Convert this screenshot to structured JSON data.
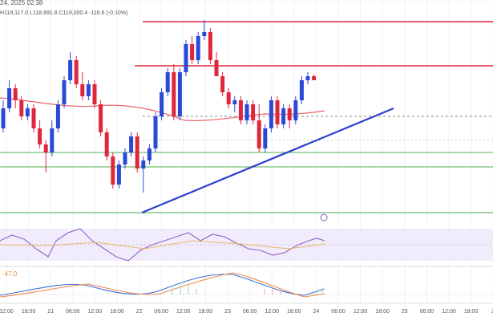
{
  "header": {
    "time": "24, 2025 02:38",
    "ohlc": "H119,117.0 L118,891.8 C119,000.4 -116.6 (-0.10%)"
  },
  "chart_data": {
    "type": "candlestick",
    "up_color": "#2a49d6",
    "down_color": "#e0263a",
    "ylim": [
      115670,
      120710
    ],
    "open": [
      117830,
      118280,
      118730,
      118460,
      118100,
      118280,
      117830,
      117470,
      117290,
      117830,
      118370,
      118910,
      119360,
      118820,
      118550,
      118820,
      118370,
      117740,
      117200,
      116570,
      117020,
      117290,
      117650,
      116930,
      117110,
      117380,
      118100,
      118640,
      119090,
      118100,
      119090,
      119720,
      119360,
      119900,
      119990,
      119360,
      119000,
      118640,
      118370,
      118460,
      118010,
      118370,
      118010,
      117380,
      117830,
      118460,
      117920,
      118280,
      118010,
      118460,
      118910,
      119000
    ],
    "high": [
      118460,
      118910,
      118820,
      118550,
      118370,
      118370,
      118010,
      117560,
      118010,
      118460,
      119000,
      119540,
      119450,
      119090,
      118910,
      118910,
      118460,
      117830,
      117290,
      117110,
      117380,
      117740,
      117740,
      117200,
      117470,
      118190,
      118730,
      119180,
      119270,
      119180,
      119810,
      119900,
      119990,
      120260,
      120080,
      119540,
      119090,
      118730,
      118550,
      118550,
      118460,
      118460,
      118370,
      117920,
      118550,
      118550,
      118370,
      118370,
      118550,
      119000,
      119090,
      119040
    ],
    "low": [
      117740,
      118190,
      118280,
      118010,
      118010,
      117740,
      117380,
      116840,
      117200,
      117740,
      118280,
      118820,
      118730,
      118460,
      118460,
      118280,
      117650,
      117110,
      116480,
      116480,
      116930,
      117200,
      116840,
      116390,
      117020,
      117290,
      118010,
      118550,
      118010,
      118010,
      119000,
      119270,
      119270,
      119810,
      119270,
      119000,
      118550,
      118280,
      118190,
      117920,
      117920,
      117920,
      117290,
      117290,
      117740,
      117830,
      117830,
      117830,
      117920,
      118370,
      118820,
      118910
    ],
    "close": [
      118280,
      118730,
      118460,
      118100,
      118280,
      117830,
      117470,
      117290,
      117830,
      118370,
      118910,
      119360,
      118820,
      118550,
      118820,
      118370,
      117740,
      117200,
      116570,
      117020,
      117290,
      117650,
      116930,
      117110,
      117380,
      118100,
      118640,
      119090,
      118100,
      119090,
      119720,
      119360,
      119900,
      119990,
      119360,
      119000,
      118640,
      118370,
      118460,
      118010,
      118370,
      118010,
      117380,
      117830,
      118460,
      117920,
      118280,
      118010,
      118460,
      118910,
      119000,
      118910
    ],
    "x_axis_labels": [
      "12:00",
      "18:00",
      "21",
      "06:00",
      "12:00",
      "18:00",
      "22",
      "06:00",
      "12:00",
      "18:00",
      "23",
      "06:00",
      "12:00",
      "18:00",
      "24",
      "06:00",
      "12:00",
      "18:00",
      "25",
      "06:00",
      "12:00",
      "18:00",
      "2"
    ],
    "macd_label": "-47.0"
  }
}
